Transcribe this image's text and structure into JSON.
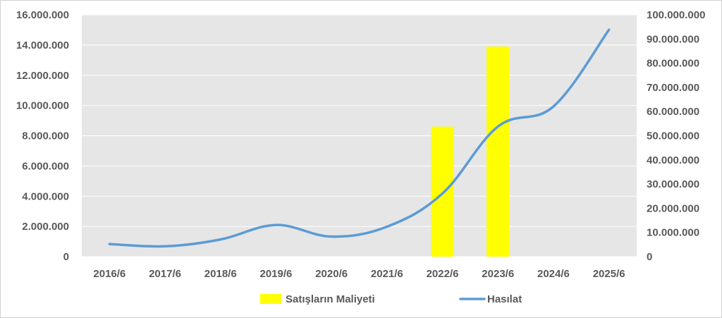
{
  "chart_data": {
    "type": "bar+line",
    "categories": [
      "2016/6",
      "2017/6",
      "2018/6",
      "2019/6",
      "2020/6",
      "2021/6",
      "2022/6",
      "2023/6",
      "2024/6",
      "2025/6"
    ],
    "series": [
      {
        "name": "Satışların Maliyeti",
        "type": "bar",
        "axis": "left",
        "color": "#ffff00",
        "values": [
          null,
          null,
          null,
          null,
          null,
          null,
          8600000,
          13900000,
          null,
          null
        ]
      },
      {
        "name": "Hasılat",
        "type": "line",
        "axis": "right",
        "color": "#5b9bd5",
        "values": [
          5200000,
          4300000,
          7100000,
          13100000,
          8300000,
          12400000,
          26100000,
          53800000,
          62100000,
          93800000
        ]
      }
    ],
    "y_left": {
      "range": [
        0,
        16000000
      ],
      "ticks": [
        "0",
        "2.000.000",
        "4.000.000",
        "6.000.000",
        "8.000.000",
        "10.000.000",
        "12.000.000",
        "14.000.000",
        "16.000.000"
      ]
    },
    "y_right": {
      "range": [
        0,
        100000000
      ],
      "ticks": [
        "0",
        "10.000.000",
        "20.000.000",
        "30.000.000",
        "40.000.000",
        "50.000.000",
        "60.000.000",
        "70.000.000",
        "80.000.000",
        "90.000.000",
        "100.000.000"
      ]
    },
    "plot_background": "#e6e6e6",
    "gridlines": true,
    "gridline_color": "#ffffff",
    "legend": {
      "position": "bottom",
      "entries": [
        "Satışların Maliyeti",
        "Hasılat"
      ]
    }
  }
}
